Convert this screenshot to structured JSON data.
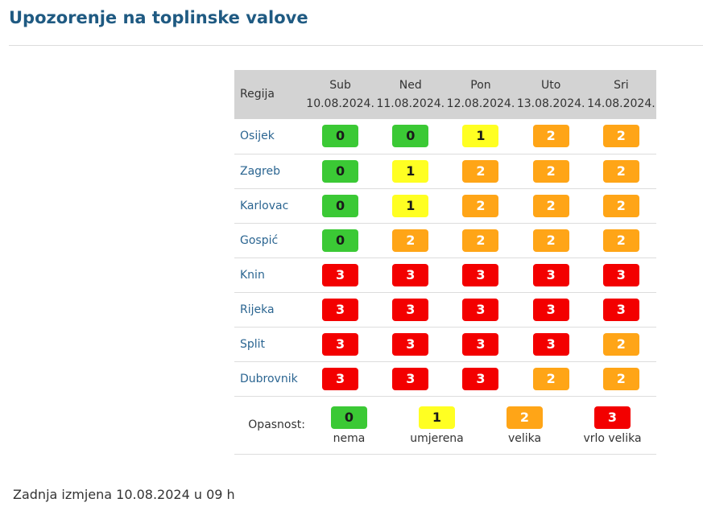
{
  "title": "Upozorenje na toplinske valove",
  "table": {
    "region_header": "Regija",
    "days": [
      {
        "name": "Sub",
        "date": "10.08.2024."
      },
      {
        "name": "Ned",
        "date": "11.08.2024."
      },
      {
        "name": "Pon",
        "date": "12.08.2024."
      },
      {
        "name": "Uto",
        "date": "13.08.2024."
      },
      {
        "name": "Sri",
        "date": "14.08.2024."
      }
    ],
    "rows": [
      {
        "region": "Osijek",
        "levels": [
          "0",
          "0",
          "1",
          "2",
          "2"
        ]
      },
      {
        "region": "Zagreb",
        "levels": [
          "0",
          "1",
          "2",
          "2",
          "2"
        ]
      },
      {
        "region": "Karlovac",
        "levels": [
          "0",
          "1",
          "2",
          "2",
          "2"
        ]
      },
      {
        "region": "Gospić",
        "levels": [
          "0",
          "2",
          "2",
          "2",
          "2"
        ]
      },
      {
        "region": "Knin",
        "levels": [
          "3",
          "3",
          "3",
          "3",
          "3"
        ]
      },
      {
        "region": "Rijeka",
        "levels": [
          "3",
          "3",
          "3",
          "3",
          "3"
        ]
      },
      {
        "region": "Split",
        "levels": [
          "3",
          "3",
          "3",
          "3",
          "2"
        ]
      },
      {
        "region": "Dubrovnik",
        "levels": [
          "3",
          "3",
          "3",
          "2",
          "2"
        ]
      }
    ]
  },
  "legend": {
    "label": "Opasnost:",
    "items": [
      {
        "level": "0",
        "desc": "nema"
      },
      {
        "level": "1",
        "desc": "umjerena"
      },
      {
        "level": "2",
        "desc": "velika"
      },
      {
        "level": "3",
        "desc": "vrlo velika"
      }
    ]
  },
  "level_colors": {
    "0": "#3bc935",
    "1": "#ffff22",
    "2": "#ffa517",
    "3": "#f30000"
  },
  "last_updated": "Zadnja izmjena 10.08.2024 u 09 h"
}
